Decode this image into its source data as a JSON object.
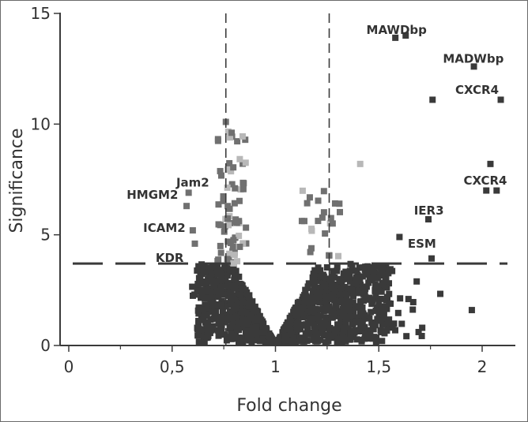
{
  "chart_data": {
    "type": "scatter",
    "xlabel": "Fold change",
    "ylabel": "Significance",
    "xlim": [
      0,
      2.1
    ],
    "ylim": [
      0,
      15
    ],
    "x_ticks": [
      {
        "value": 0,
        "label": "0"
      },
      {
        "value": 0.5,
        "label": "0,5"
      },
      {
        "value": 1,
        "label": "1"
      },
      {
        "value": 1.5,
        "label": "1,5"
      },
      {
        "value": 2,
        "label": "2"
      }
    ],
    "y_ticks": [
      {
        "value": 0,
        "label": "0"
      },
      {
        "value": 5,
        "label": "5"
      },
      {
        "value": 10,
        "label": "10"
      },
      {
        "value": 15,
        "label": "15"
      }
    ],
    "thresholds": {
      "fold_low": 0.76,
      "fold_high": 1.26,
      "significance": 3.7
    },
    "colors": {
      "point": "#3a3a3a",
      "point_mid": "#707070",
      "point_light": "#b8b8b8",
      "line": "#3a3a3a",
      "text": "#333333"
    },
    "labeled_points": [
      {
        "name": "MAWDbp",
        "x": 1.58,
        "y": 13.9
      },
      {
        "name": "MAWDbp",
        "x": 1.63,
        "y": 14.0
      },
      {
        "name": "MADWbp",
        "x": 1.96,
        "y": 12.6
      },
      {
        "name": "CXCR4",
        "x": 1.76,
        "y": 11.1
      },
      {
        "name": "CXCR4",
        "x": 2.09,
        "y": 11.1
      },
      {
        "name": "CXCR4",
        "x": 2.04,
        "y": 8.2
      },
      {
        "name": "CXCR4",
        "x": 2.02,
        "y": 7.0
      },
      {
        "name": "CXCR4",
        "x": 2.07,
        "y": 7.0
      },
      {
        "name": "IER3",
        "x": 1.74,
        "y": 5.7
      },
      {
        "name": "ESM",
        "x": 1.6,
        "y": 4.9
      },
      {
        "name": "Jam2",
        "x": 0.76,
        "y": 10.1
      },
      {
        "name": "HMGM2",
        "x": 0.58,
        "y": 6.9
      },
      {
        "name": "HMGM2",
        "x": 0.57,
        "y": 6.3
      },
      {
        "name": "ICAM2",
        "x": 0.6,
        "y": 5.2
      },
      {
        "name": "KDR",
        "x": 0.61,
        "y": 4.6
      }
    ],
    "annotations": [
      {
        "text": "MAWDbp",
        "x": 1.44,
        "y": 14.25
      },
      {
        "text": "MADWbp",
        "x": 1.81,
        "y": 12.95
      },
      {
        "text": "CXCR4",
        "x": 1.87,
        "y": 11.55
      },
      {
        "text": "CXCR4",
        "x": 1.91,
        "y": 7.45
      },
      {
        "text": "Jam2",
        "x": 0.52,
        "y": 7.35
      },
      {
        "text": "HMGM2",
        "x": 0.28,
        "y": 6.8
      },
      {
        "text": "IER3",
        "x": 1.67,
        "y": 6.1
      },
      {
        "text": "ICAM2",
        "x": 0.36,
        "y": 5.3
      },
      {
        "text": "ESM",
        "x": 1.64,
        "y": 4.6
      },
      {
        "text": "KDR",
        "x": 0.42,
        "y": 3.95
      }
    ]
  }
}
